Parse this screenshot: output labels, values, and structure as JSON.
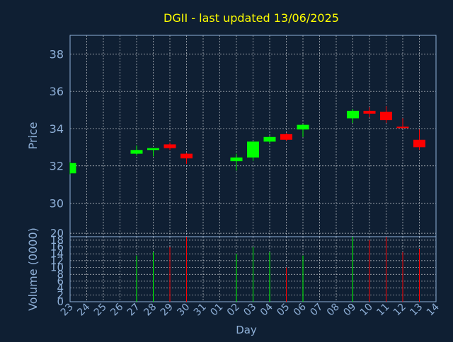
{
  "chart_data": {
    "type": "candlestick",
    "title": "DGII - last updated 13/06/2025",
    "xlabel": "Day",
    "price_panel": {
      "ylabel": "Price",
      "ylim": [
        28.2,
        39.0
      ],
      "yticks": [
        "30",
        "32",
        "34",
        "36",
        "38"
      ],
      "grid": true
    },
    "volume_panel": {
      "ylabel": "Volume (0000)",
      "ylim": [
        0,
        19
      ],
      "yticks": [
        "0",
        "2",
        "4",
        "6",
        "8",
        "10",
        "12",
        "14",
        "16",
        "18",
        "20"
      ],
      "grid": true
    },
    "x_tick_labels": [
      "23",
      "24",
      "25",
      "26",
      "27",
      "28",
      "29",
      "30",
      "31",
      "01",
      "02",
      "03",
      "04",
      "05",
      "06",
      "07",
      "08",
      "09",
      "10",
      "11",
      "12",
      "13",
      "14"
    ],
    "candles": [
      {
        "day": "23",
        "open": 31.6,
        "high": 32.2,
        "low": 31.55,
        "close": 32.15,
        "volume": 0
      },
      {
        "day": "27",
        "open": 32.65,
        "high": 33.1,
        "low": 32.55,
        "close": 32.85,
        "volume": 13.5
      },
      {
        "day": "28",
        "open": 32.85,
        "high": 32.95,
        "low": 32.5,
        "close": 32.95,
        "volume": 14.5
      },
      {
        "day": "29",
        "open": 33.15,
        "high": 33.25,
        "low": 32.85,
        "close": 32.95,
        "volume": 16.0
      },
      {
        "day": "30",
        "open": 32.65,
        "high": 32.7,
        "low": 32.1,
        "close": 32.4,
        "volume": 19.0
      },
      {
        "day": "02",
        "open": 32.25,
        "high": 32.65,
        "low": 31.75,
        "close": 32.45,
        "volume": 14.0
      },
      {
        "day": "03",
        "open": 32.45,
        "high": 33.3,
        "low": 32.25,
        "close": 33.3,
        "volume": 16.0
      },
      {
        "day": "04",
        "open": 33.3,
        "high": 33.6,
        "low": 33.2,
        "close": 33.55,
        "volume": 14.5
      },
      {
        "day": "05",
        "open": 33.7,
        "high": 33.75,
        "low": 33.35,
        "close": 33.4,
        "volume": 10.0
      },
      {
        "day": "06",
        "open": 33.95,
        "high": 34.25,
        "low": 33.55,
        "close": 34.2,
        "volume": 13.5
      },
      {
        "day": "09",
        "open": 34.55,
        "high": 35.05,
        "low": 34.3,
        "close": 34.95,
        "volume": 19.0
      },
      {
        "day": "10",
        "open": 34.95,
        "high": 35.15,
        "low": 34.6,
        "close": 34.8,
        "volume": 18.0
      },
      {
        "day": "11",
        "open": 34.9,
        "high": 35.2,
        "low": 34.3,
        "close": 34.45,
        "volume": 19.0
      },
      {
        "day": "12",
        "open": 34.1,
        "high": 34.55,
        "low": 34.0,
        "close": 34.05,
        "volume": 14.5
      },
      {
        "day": "13",
        "open": 33.4,
        "high": 33.95,
        "low": 32.85,
        "close": 33.0,
        "volume": 15.5
      }
    ],
    "colors": {
      "background": "#0f1f33",
      "title": "#ffff00",
      "axis_text": "#8fb0d8",
      "grid": "#ffffff",
      "up": "#00ff00",
      "down": "#ff0000"
    }
  }
}
